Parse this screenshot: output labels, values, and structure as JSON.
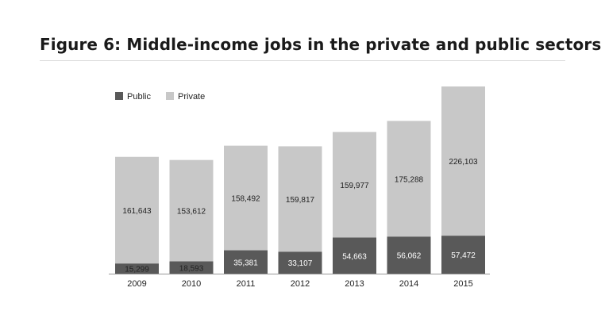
{
  "title": "Figure 6: Middle-income jobs in the private and public sectors",
  "colors": {
    "public": "#595959",
    "private": "#c8c8c8",
    "axis": "#999999",
    "title_rule": "#d9d9d9"
  },
  "chart_data": {
    "type": "bar",
    "stacked": true,
    "categories": [
      "2009",
      "2010",
      "2011",
      "2012",
      "2013",
      "2014",
      "2015"
    ],
    "series": [
      {
        "name": "Public",
        "values": [
          15299,
          18593,
          35381,
          33107,
          54663,
          56062,
          57472
        ],
        "labels": [
          "15,299",
          "18,593",
          "35,381",
          "33,107",
          "54,663",
          "56,062",
          "57,472"
        ]
      },
      {
        "name": "Private",
        "values": [
          161643,
          153612,
          158492,
          159817,
          159977,
          175288,
          226103
        ],
        "labels": [
          "161,643",
          "153,612",
          "158,492",
          "159,817",
          "159,977",
          "175,288",
          "226,103"
        ]
      }
    ],
    "legend_position": "top-left",
    "grid": false,
    "xlabel": "",
    "ylabel": "",
    "ylim": [
      0,
      285000
    ]
  }
}
